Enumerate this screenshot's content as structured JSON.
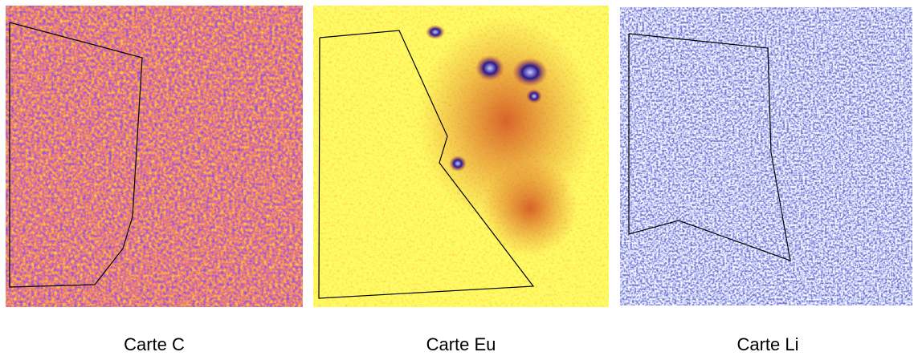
{
  "panels": [
    {
      "caption": "Carte C"
    },
    {
      "caption": "Carte Eu"
    },
    {
      "caption": "Carte Li"
    }
  ]
}
